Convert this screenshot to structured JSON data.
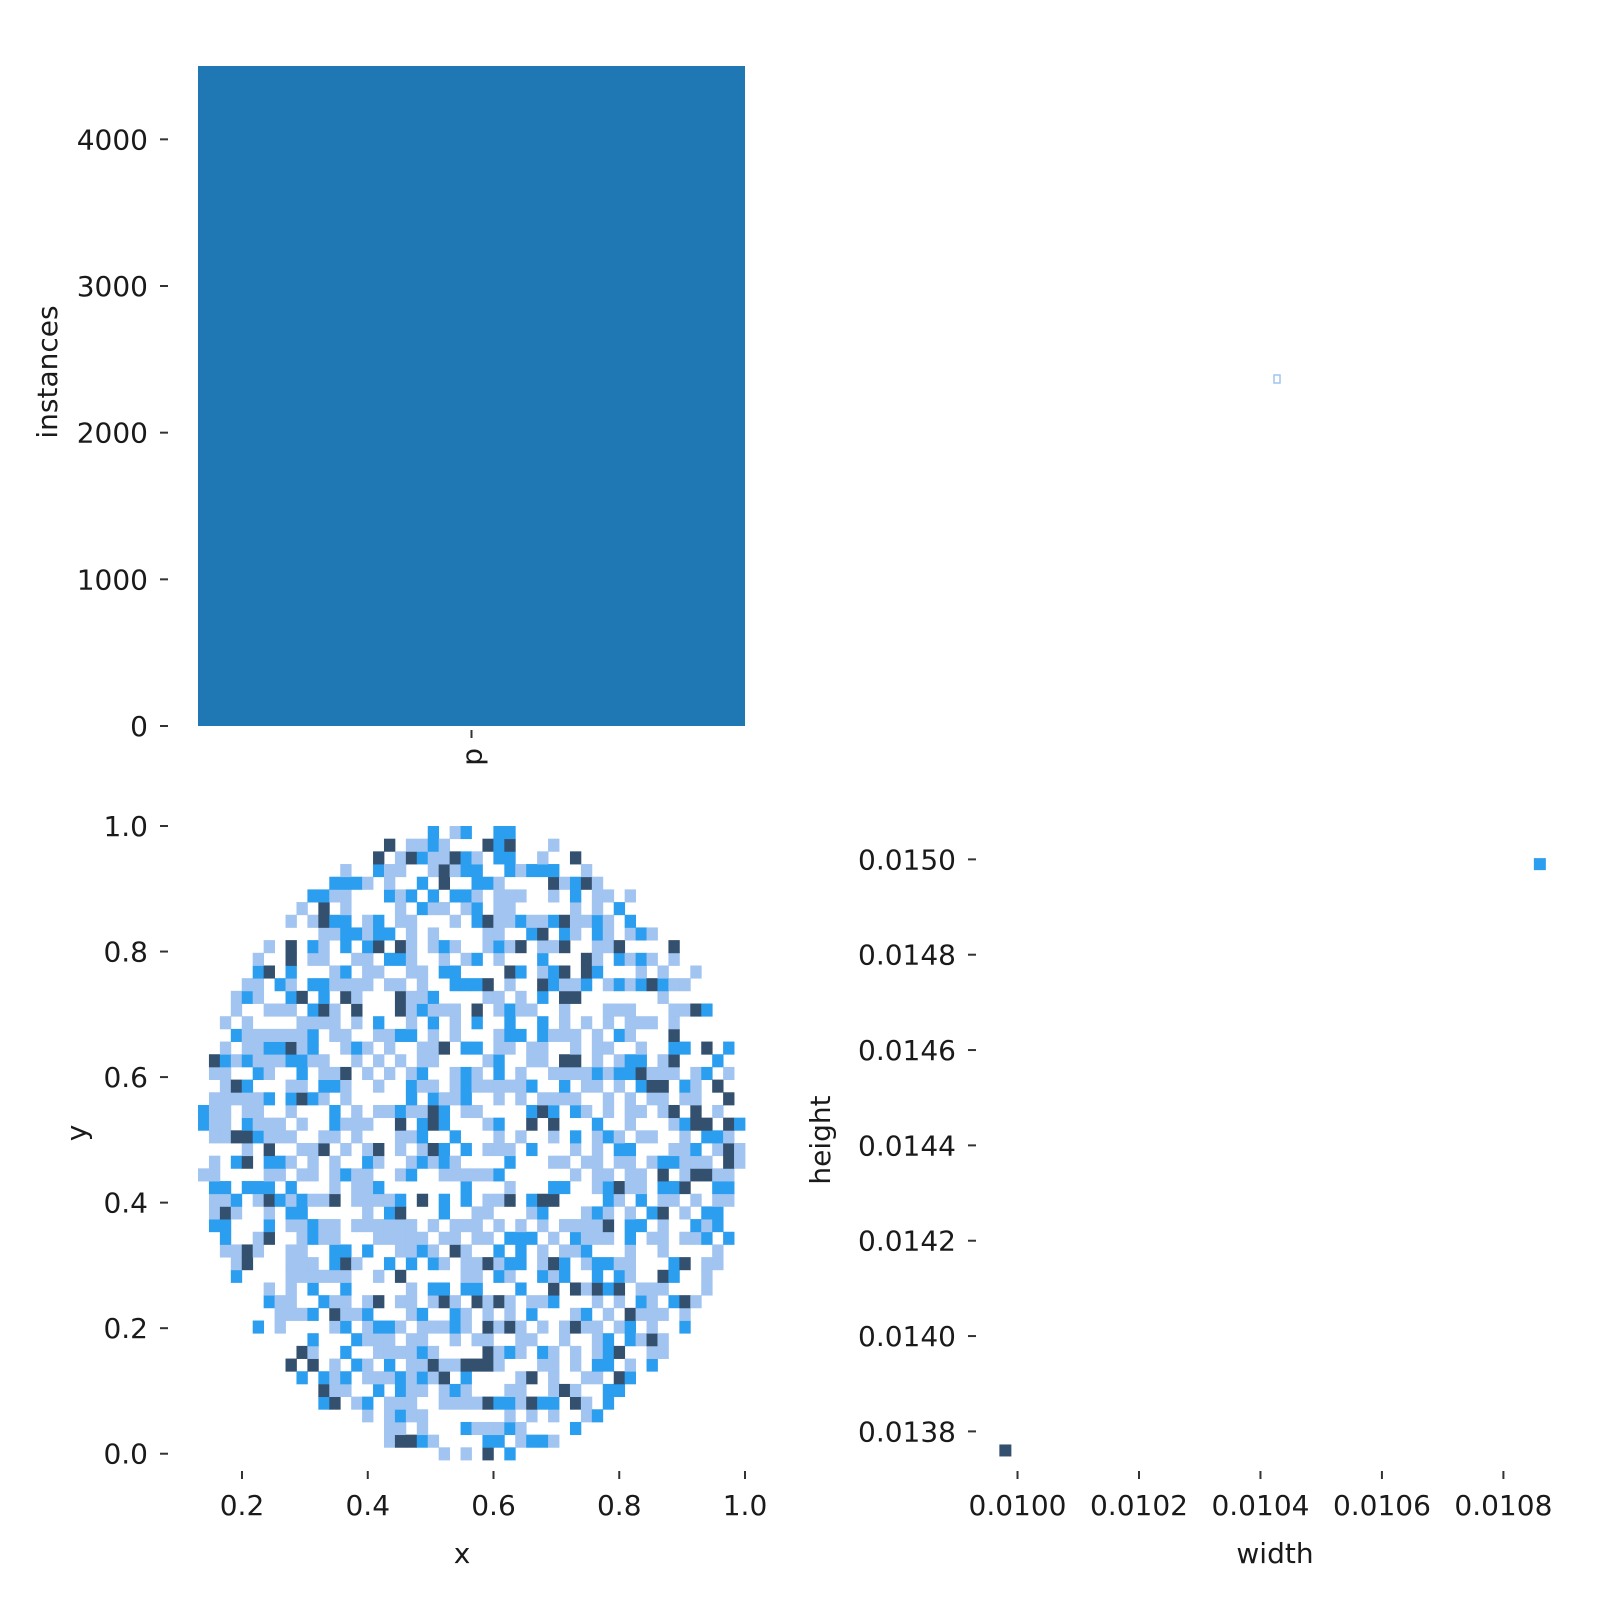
{
  "colors": {
    "bar": "#1f77b4",
    "heat_light": "#a1c4f0",
    "heat_mid": "#2b9ef0",
    "heat_dark": "#34506f",
    "tick_text": "#1a1a1a"
  },
  "chart_data": [
    {
      "id": "class-histogram",
      "type": "bar",
      "categories": [
        "p"
      ],
      "values": [
        4500
      ],
      "ylabel": "instances",
      "ylim": [
        0,
        4500
      ],
      "yticks": [
        0,
        1000,
        2000,
        3000,
        4000
      ],
      "ytick_labels": [
        "0",
        "1000",
        "2000",
        "3000",
        "4000"
      ],
      "grid": false
    },
    {
      "id": "box-size-point",
      "type": "scatter",
      "points": [
        {
          "x": 0.0104,
          "y": 0.01485
        }
      ],
      "grid": false
    },
    {
      "id": "xy-heatmap",
      "type": "heatmap",
      "xlabel": "x",
      "ylabel": "y",
      "xlim": [
        0.13,
        1.0
      ],
      "ylim": [
        -0.01,
        1.0
      ],
      "xticks": [
        0.2,
        0.4,
        0.6,
        0.8,
        1.0
      ],
      "xtick_labels": [
        "0.2",
        "0.4",
        "0.6",
        "0.8",
        "1.0"
      ],
      "yticks": [
        0.0,
        0.2,
        0.4,
        0.6,
        0.8,
        1.0
      ],
      "ytick_labels": [
        "0.0",
        "0.2",
        "0.4",
        "0.6",
        "0.8",
        "1.0"
      ],
      "bins": 50,
      "density_levels": [
        "empty",
        "low",
        "medium",
        "high"
      ],
      "grid": false
    },
    {
      "id": "width-height-heatmap",
      "type": "heatmap",
      "xlabel": "width",
      "ylabel": "height",
      "xlim": [
        0.00993,
        0.01088
      ],
      "ylim": [
        0.01374,
        0.01507
      ],
      "xticks": [
        0.01,
        0.0102,
        0.0104,
        0.0106,
        0.0108
      ],
      "xtick_labels": [
        "0.0100",
        "0.0102",
        "0.0104",
        "0.0106",
        "0.0108"
      ],
      "yticks": [
        0.0138,
        0.014,
        0.0142,
        0.0144,
        0.0146,
        0.0148,
        0.015
      ],
      "ytick_labels": [
        "0.0138",
        "0.0140",
        "0.0142",
        "0.0144",
        "0.0146",
        "0.0148",
        "0.0150"
      ],
      "cells": [
        {
          "x": 0.00998,
          "y": 0.01376,
          "level": "high"
        },
        {
          "x": 0.01086,
          "y": 0.01499,
          "level": "medium"
        }
      ],
      "grid": false
    }
  ]
}
